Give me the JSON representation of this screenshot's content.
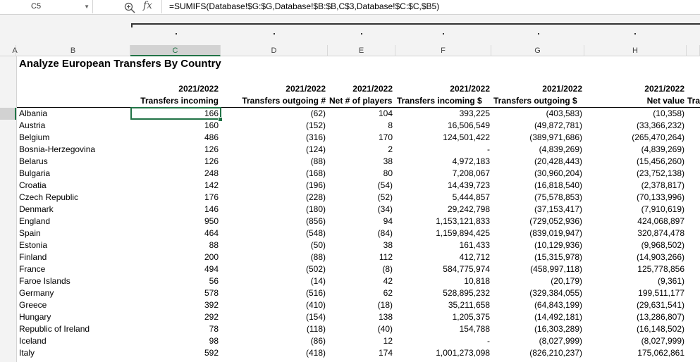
{
  "formula_bar": {
    "name_box": "C5",
    "formula": "=SUMIFS(Database!$G:$G,Database!$B:$B,C$3,Database!$C:$C,$B5)",
    "zoom_icon": "zoom-icon",
    "fx_label": "fx"
  },
  "columns": [
    "A",
    "B",
    "C",
    "D",
    "E",
    "F",
    "G",
    "H"
  ],
  "sheet": {
    "title": "Analyze European Transfers By Country",
    "headers": [
      {
        "year": "2021/2022",
        "label": "Transfers incoming"
      },
      {
        "year": "2021/2022",
        "label": "Transfers outgoing #"
      },
      {
        "year": "2021/2022",
        "label": "Net # of players"
      },
      {
        "year": "2021/2022",
        "label": "Transfers incoming $"
      },
      {
        "year": "2021/2022",
        "label": "Transfers outgoing $"
      },
      {
        "year": "2021/2022",
        "label": "Net value"
      },
      {
        "year": "",
        "label": "Tra"
      }
    ],
    "rows": [
      {
        "country": "Albania",
        "in": "166",
        "out": "(62)",
        "net": "104",
        "in_usd": "393,225",
        "out_usd": "(403,583)",
        "net_val": "(10,358)"
      },
      {
        "country": "Austria",
        "in": "160",
        "out": "(152)",
        "net": "8",
        "in_usd": "16,506,549",
        "out_usd": "(49,872,781)",
        "net_val": "(33,366,232)"
      },
      {
        "country": "Belgium",
        "in": "486",
        "out": "(316)",
        "net": "170",
        "in_usd": "124,501,422",
        "out_usd": "(389,971,686)",
        "net_val": "(265,470,264)"
      },
      {
        "country": "Bosnia-Herzegovina",
        "in": "126",
        "out": "(124)",
        "net": "2",
        "in_usd": "-",
        "out_usd": "(4,839,269)",
        "net_val": "(4,839,269)"
      },
      {
        "country": "Belarus",
        "in": "126",
        "out": "(88)",
        "net": "38",
        "in_usd": "4,972,183",
        "out_usd": "(20,428,443)",
        "net_val": "(15,456,260)"
      },
      {
        "country": "Bulgaria",
        "in": "248",
        "out": "(168)",
        "net": "80",
        "in_usd": "7,208,067",
        "out_usd": "(30,960,204)",
        "net_val": "(23,752,138)"
      },
      {
        "country": "Croatia",
        "in": "142",
        "out": "(196)",
        "net": "(54)",
        "in_usd": "14,439,723",
        "out_usd": "(16,818,540)",
        "net_val": "(2,378,817)"
      },
      {
        "country": "Czech Republic",
        "in": "176",
        "out": "(228)",
        "net": "(52)",
        "in_usd": "5,444,857",
        "out_usd": "(75,578,853)",
        "net_val": "(70,133,996)"
      },
      {
        "country": "Denmark",
        "in": "146",
        "out": "(180)",
        "net": "(34)",
        "in_usd": "29,242,798",
        "out_usd": "(37,153,417)",
        "net_val": "(7,910,619)"
      },
      {
        "country": "England",
        "in": "950",
        "out": "(856)",
        "net": "94",
        "in_usd": "1,153,121,833",
        "out_usd": "(729,052,936)",
        "net_val": "424,068,897"
      },
      {
        "country": "Spain",
        "in": "464",
        "out": "(548)",
        "net": "(84)",
        "in_usd": "1,159,894,425",
        "out_usd": "(839,019,947)",
        "net_val": "320,874,478"
      },
      {
        "country": "Estonia",
        "in": "88",
        "out": "(50)",
        "net": "38",
        "in_usd": "161,433",
        "out_usd": "(10,129,936)",
        "net_val": "(9,968,502)"
      },
      {
        "country": "Finland",
        "in": "200",
        "out": "(88)",
        "net": "112",
        "in_usd": "412,712",
        "out_usd": "(15,315,978)",
        "net_val": "(14,903,266)"
      },
      {
        "country": "France",
        "in": "494",
        "out": "(502)",
        "net": "(8)",
        "in_usd": "584,775,974",
        "out_usd": "(458,997,118)",
        "net_val": "125,778,856"
      },
      {
        "country": "Faroe Islands",
        "in": "56",
        "out": "(14)",
        "net": "42",
        "in_usd": "10,818",
        "out_usd": "(20,179)",
        "net_val": "(9,361)"
      },
      {
        "country": "Germany",
        "in": "578",
        "out": "(516)",
        "net": "62",
        "in_usd": "528,895,232",
        "out_usd": "(329,384,055)",
        "net_val": "199,511,177"
      },
      {
        "country": "Greece",
        "in": "392",
        "out": "(410)",
        "net": "(18)",
        "in_usd": "35,211,658",
        "out_usd": "(64,843,199)",
        "net_val": "(29,631,541)"
      },
      {
        "country": "Hungary",
        "in": "292",
        "out": "(154)",
        "net": "138",
        "in_usd": "1,205,375",
        "out_usd": "(14,492,181)",
        "net_val": "(13,286,807)"
      },
      {
        "country": "Republic of Ireland",
        "in": "78",
        "out": "(118)",
        "net": "(40)",
        "in_usd": "154,788",
        "out_usd": "(16,303,289)",
        "net_val": "(16,148,502)"
      },
      {
        "country": "Iceland",
        "in": "98",
        "out": "(86)",
        "net": "12",
        "in_usd": "-",
        "out_usd": "(8,027,999)",
        "net_val": "(8,027,999)"
      },
      {
        "country": "Italy",
        "in": "592",
        "out": "(418)",
        "net": "174",
        "in_usd": "1,001,273,098",
        "out_usd": "(826,210,237)",
        "net_val": "175,062,861"
      }
    ]
  },
  "colors": {
    "selection": "#217346",
    "header_bg": "#f3f3f3"
  }
}
